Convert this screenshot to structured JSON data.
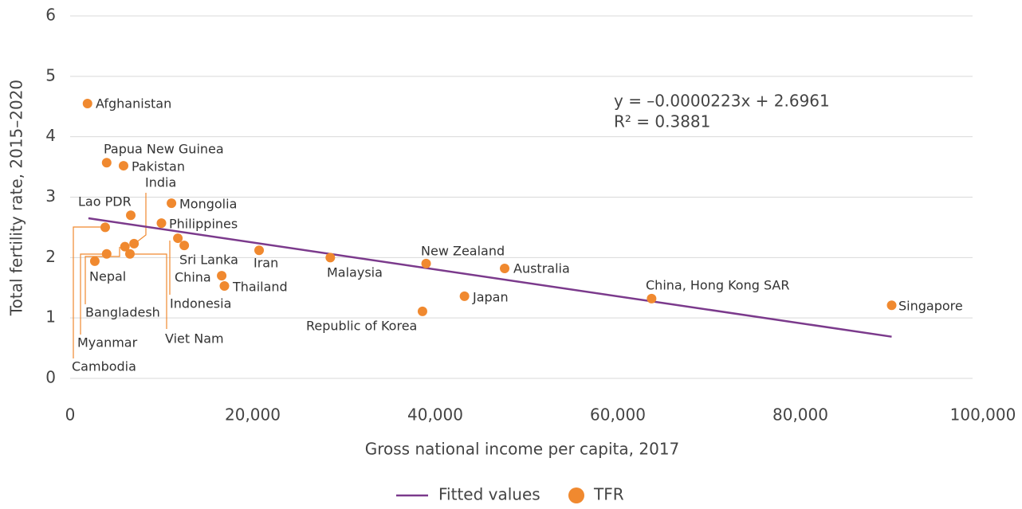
{
  "chart_data": {
    "type": "scatter",
    "xlabel": "Gross national income per capita, 2017",
    "ylabel": "Total fertility rate, 2015–2020",
    "annotations": [
      "y   = –0.0000223x + 2.6961",
      "R² = 0.3881"
    ],
    "xlim": [
      0,
      100000
    ],
    "xticks": [
      0,
      {
        "value": 20000,
        "label": "20,000"
      },
      {
        "value": 40000,
        "label": "40,000"
      },
      {
        "value": 60000,
        "label": "60,000"
      },
      {
        "value": 80000,
        "label": "80,000"
      },
      {
        "value": 100000,
        "label": "100,000"
      }
    ],
    "ylim": [
      0,
      6
    ],
    "yticks": [
      0,
      1,
      2,
      3,
      4,
      5,
      6
    ],
    "grid": true,
    "legend": "bottom",
    "series": [
      {
        "name": "Fitted values",
        "type": "line",
        "color": "#7b3a8c",
        "x": [
          2000,
          90000
        ],
        "values": [
          2.65,
          0.69
        ]
      },
      {
        "name": "TFR",
        "type": "scatter",
        "color": "#f0892f",
        "labels": [
          "Afghanistan",
          "Papua New Guinea",
          "Pakistan",
          "India",
          "Lao PDR",
          "Mongolia",
          "Philippines",
          "Cambodia",
          "Nepal",
          "Myanmar",
          "Bangladesh",
          "Viet Nam",
          "Indonesia",
          "Sri Lanka",
          "Iran",
          "China",
          "Thailand",
          "Malaysia",
          "New Zealand",
          "Australia",
          "Republic of Korea",
          "Japan",
          "China, Hong Kong SAR",
          "Singapore"
        ],
        "x": [
          1900,
          4000,
          5850,
          7000,
          6640,
          11100,
          10000,
          3840,
          2700,
          4000,
          6000,
          6550,
          11800,
          12500,
          20700,
          16600,
          16900,
          28500,
          39000,
          47600,
          38600,
          43200,
          63700,
          90000
        ],
        "values": [
          4.55,
          3.57,
          3.52,
          2.23,
          2.7,
          2.9,
          2.57,
          2.5,
          1.94,
          2.06,
          2.18,
          2.06,
          2.32,
          2.2,
          2.12,
          1.7,
          1.53,
          2.0,
          1.9,
          1.82,
          1.11,
          1.36,
          1.32,
          1.21
        ]
      }
    ]
  }
}
